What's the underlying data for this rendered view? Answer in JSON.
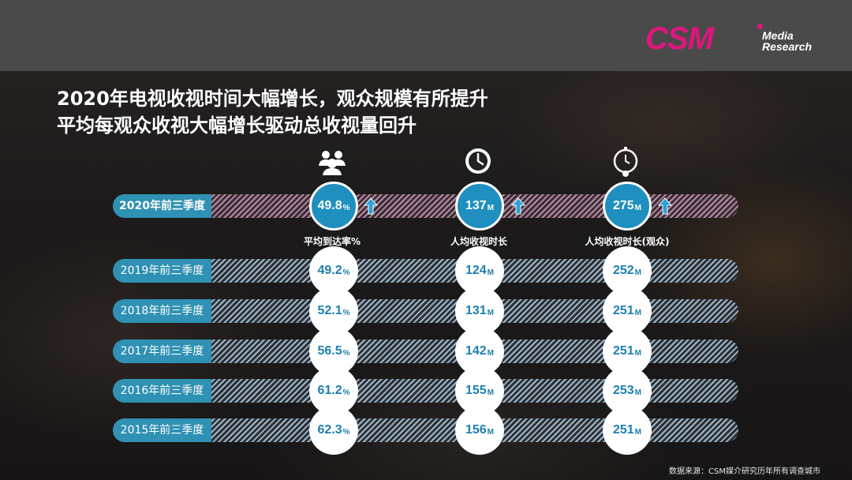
{
  "logo": {
    "text": "CSM",
    "line1": "Media",
    "line2": "Research"
  },
  "title": {
    "line1": "2020年电视收视时间大幅增长，观众规模有所提升",
    "line2": "平均每观众收视大幅增长驱动总收视量回升"
  },
  "metrics": [
    {
      "label": "平均到达率%",
      "icon": "people-icon"
    },
    {
      "label": "人均收视时长",
      "icon": "clock-icon"
    },
    {
      "label": "人均收视时长(观众)",
      "icon": "stopwatch-icon"
    }
  ],
  "rows": [
    {
      "period": "2020年前三季度",
      "v1": "49.8",
      "u1": "%",
      "v2": "137",
      "u2": "M",
      "v3": "275",
      "u3": "M"
    },
    {
      "period": "2019年前三季度",
      "v1": "49.2",
      "u1": "%",
      "v2": "124",
      "u2": "M",
      "v3": "252",
      "u3": "M"
    },
    {
      "period": "2018年前三季度",
      "v1": "52.1",
      "u1": "%",
      "v2": "131",
      "u2": "M",
      "v3": "251",
      "u3": "M"
    },
    {
      "period": "2017年前三季度",
      "v1": "56.5",
      "u1": "%",
      "v2": "142",
      "u2": "M",
      "v3": "251",
      "u3": "M"
    },
    {
      "period": "2016年前三季度",
      "v1": "61.2",
      "u1": "%",
      "v2": "155",
      "u2": "M",
      "v3": "253",
      "u3": "M"
    },
    {
      "period": "2015年前三季度",
      "v1": "62.3",
      "u1": "%",
      "v2": "156",
      "u2": "M",
      "v3": "251",
      "u3": "M"
    }
  ],
  "source": "数据来源：CSM媒介研究历年所有调查城市",
  "colors": {
    "brand": "#e0157d",
    "accent": "#1e8fbf",
    "topbar": "#4a4a4a"
  }
}
